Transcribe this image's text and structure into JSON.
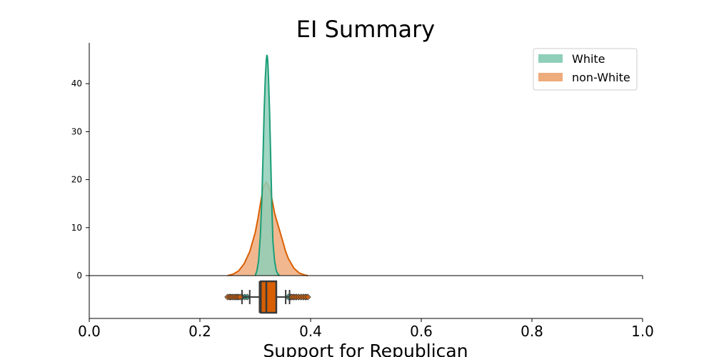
{
  "chart_data": {
    "type": "area",
    "title": "EI Summary",
    "xlabel": "Support for Republican",
    "ylabel": "",
    "xlim": [
      0.0,
      1.0
    ],
    "ylim": [
      0,
      48
    ],
    "x_ticks": [
      0.0,
      0.2,
      0.4,
      0.6,
      0.8,
      1.0
    ],
    "x_tick_labels": [
      "0.0",
      "0.2",
      "0.4",
      "0.6",
      "0.8",
      "1.0"
    ],
    "y_ticks": [
      0,
      10,
      20,
      30,
      40
    ],
    "y_tick_labels": [
      "0",
      "10",
      "20",
      "30",
      "40"
    ],
    "legend": {
      "position": "top-right",
      "frame": true
    },
    "grid": false,
    "series": [
      {
        "name": "White",
        "color": "#1b9e77",
        "fill_color": "#8fcfb9",
        "kde": {
          "x": [
            0.3,
            0.303,
            0.306,
            0.309,
            0.312,
            0.314,
            0.316,
            0.318,
            0.32,
            0.321,
            0.322,
            0.323,
            0.324,
            0.326,
            0.328,
            0.33,
            0.332,
            0.335,
            0.338,
            0.341,
            0.344
          ],
          "y": [
            0,
            1,
            3,
            8,
            16,
            25,
            34,
            41,
            45,
            46,
            45.5,
            44,
            41,
            34,
            24,
            14,
            7,
            3,
            1,
            0.3,
            0
          ]
        },
        "box": {
          "q1": 0.308,
          "median": 0.322,
          "q3": 0.334,
          "whisker_low": 0.29,
          "whisker_high": 0.355,
          "outlier_range": [
            0.255,
            0.392
          ]
        }
      },
      {
        "name": "non-White",
        "color": "#d95f02",
        "fill_color": "#eeab7c",
        "kde": {
          "x": [
            0.25,
            0.26,
            0.27,
            0.28,
            0.29,
            0.3,
            0.305,
            0.31,
            0.315,
            0.32,
            0.325,
            0.33,
            0.335,
            0.34,
            0.345,
            0.35,
            0.355,
            0.36,
            0.37,
            0.38,
            0.39,
            0.395
          ],
          "y": [
            0,
            0.3,
            1,
            2.5,
            5,
            9,
            12,
            15.5,
            18.5,
            19.5,
            18.5,
            16,
            13,
            11,
            9,
            7,
            5,
            3.5,
            1.5,
            0.5,
            0.1,
            0
          ]
        },
        "box": {
          "q1": 0.31,
          "median": 0.32,
          "q3": 0.338,
          "whisker_low": 0.276,
          "whisker_high": 0.362,
          "outlier_range": [
            0.25,
            0.395
          ]
        }
      }
    ]
  }
}
